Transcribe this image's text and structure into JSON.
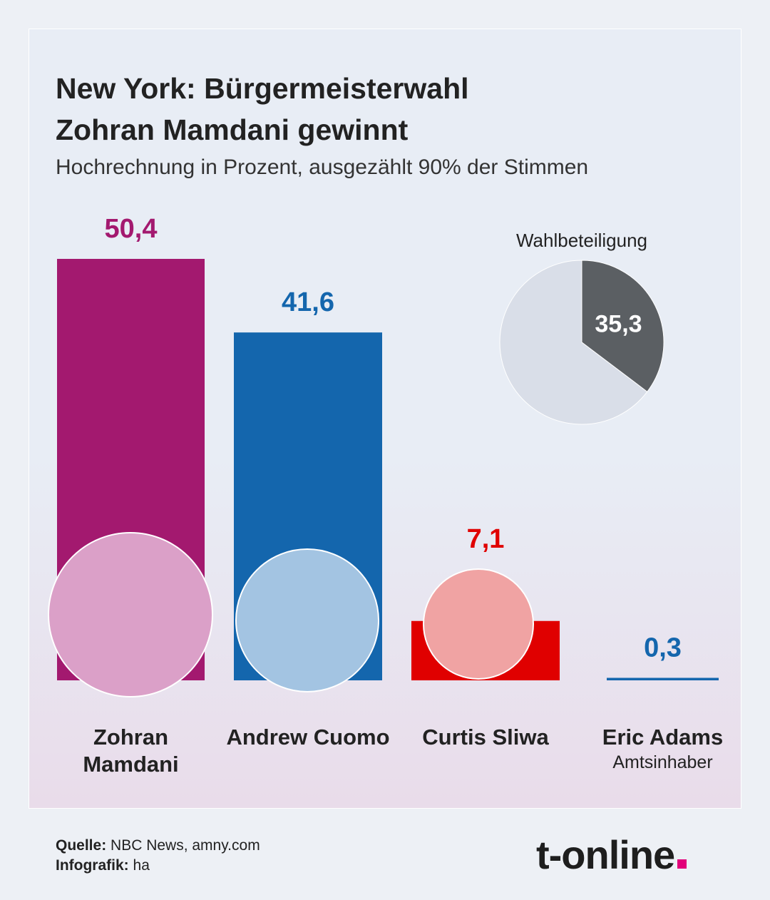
{
  "header": {
    "title_lines": [
      "New York: Bürgermeisterwahl",
      "Zohran Mamdani gewinnt"
    ],
    "subtitle": "Hochrechnung in Prozent, ausgezählt 90% der Stimmen"
  },
  "chart_data": [
    {
      "type": "bar",
      "categories": [
        "Zohran Mamdani",
        "Andrew Cuomo",
        "Curtis Sliwa",
        "Eric Adams"
      ],
      "category_notes": [
        null,
        null,
        null,
        "Amtsinhaber"
      ],
      "values": [
        50.4,
        41.6,
        7.1,
        0.3
      ],
      "value_labels": [
        "50,4",
        "41,6",
        "7,1",
        "0,3"
      ],
      "colors": [
        "#a3196f",
        "#1466ad",
        "#e00000",
        "#1466ad"
      ]
    },
    {
      "type": "pie",
      "title": "Wahlbeteiligung",
      "values": [
        35.3,
        64.7
      ],
      "value_labels": [
        "35,3",
        null
      ],
      "colors": [
        "#5b5f63",
        "#d9dee8"
      ]
    }
  ],
  "footer": {
    "source_label": "Quelle:",
    "source": "NBC News, amny.com",
    "credit_label": "Infografik:",
    "credit": "ha",
    "logo": "t-online"
  }
}
